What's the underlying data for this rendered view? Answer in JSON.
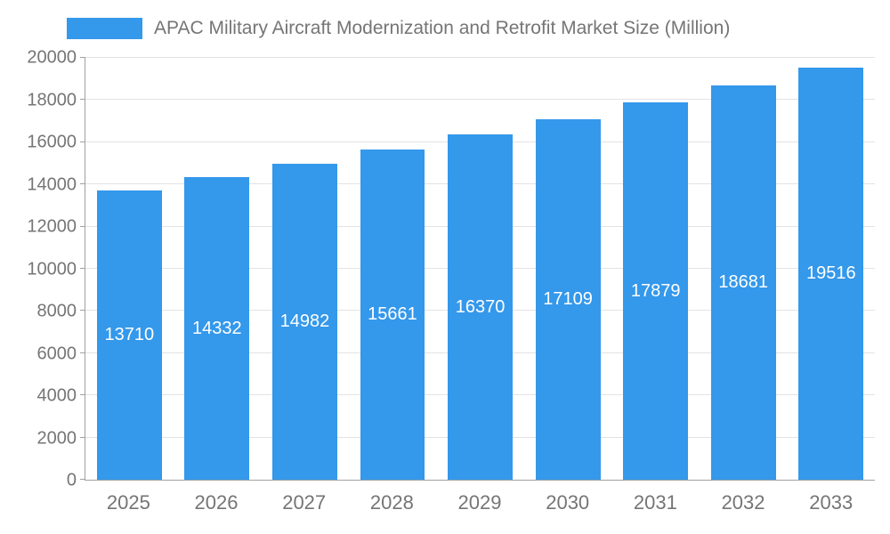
{
  "legend": {
    "title": "APAC Military Aircraft Modernization and Retrofit Market Size (Million)"
  },
  "colors": {
    "bar": "#3498EB",
    "grid": "#e3e3e3",
    "axis": "#a0a0a0",
    "text": "#757575",
    "bar_label": "#ffffff"
  },
  "chart_data": {
    "type": "bar",
    "title": "APAC Military Aircraft Modernization and Retrofit Market Size (Million)",
    "categories": [
      "2025",
      "2026",
      "2027",
      "2028",
      "2029",
      "2030",
      "2031",
      "2032",
      "2033"
    ],
    "values": [
      13710,
      14332,
      14982,
      15661,
      16370,
      17109,
      17879,
      18681,
      19516
    ],
    "xlabel": "",
    "ylabel": "",
    "ylim": [
      0,
      20000
    ],
    "ytick_step": 2000,
    "yticks": [
      0,
      2000,
      4000,
      6000,
      8000,
      10000,
      12000,
      14000,
      16000,
      18000,
      20000
    ],
    "grid": true,
    "legend_position": "top",
    "bar_labels_visible": true,
    "bar_label_position": "center-inside"
  }
}
